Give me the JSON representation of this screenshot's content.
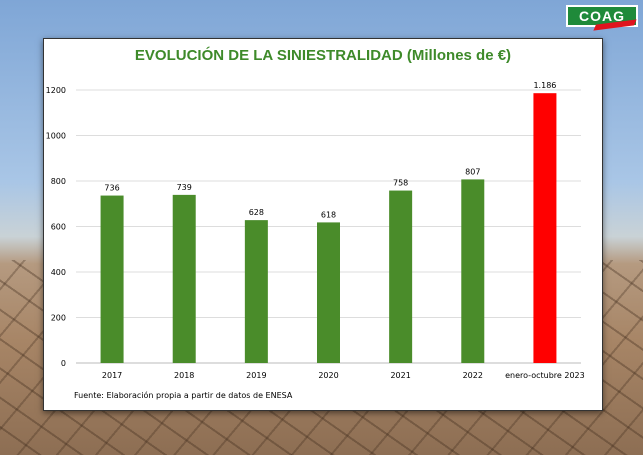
{
  "logo": "COAG",
  "footer": "Fuente: Elaboración propia a partir de datos de ENESA",
  "chart_data": {
    "type": "bar",
    "title": "EVOLUCIÓN DE LA SINIESTRALIDAD (Millones de €)",
    "categories": [
      "2017",
      "2018",
      "2019",
      "2020",
      "2021",
      "2022",
      "enero-octubre 2023"
    ],
    "values": [
      736,
      739,
      628,
      618,
      758,
      807,
      1186
    ],
    "data_labels": [
      "736",
      "739",
      "628",
      "618",
      "758",
      "807",
      "1.186"
    ],
    "colors": [
      "#4a8c2a",
      "#4a8c2a",
      "#4a8c2a",
      "#4a8c2a",
      "#4a8c2a",
      "#4a8c2a",
      "#ff0000"
    ],
    "yticks": [
      0,
      200,
      400,
      600,
      800,
      1000,
      1200
    ],
    "ylim": [
      0,
      1200
    ],
    "grid": true,
    "xlabel": "",
    "ylabel": ""
  }
}
